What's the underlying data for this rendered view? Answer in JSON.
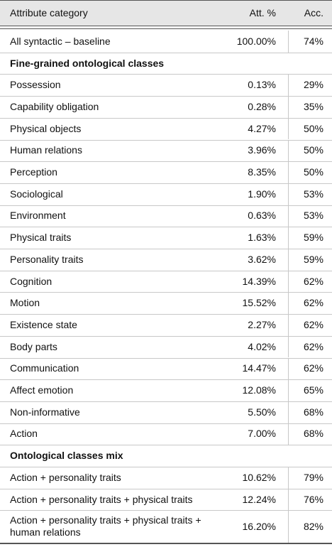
{
  "table": {
    "header": [
      "Attribute category",
      "Att. %",
      "Acc."
    ],
    "baseline": [
      "All syntactic – baseline",
      "100.00%",
      "74%"
    ],
    "sections": [
      {
        "title": "Fine-grained ontological classes",
        "rows": [
          [
            "Possession",
            "0.13%",
            "29%"
          ],
          [
            "Capability obligation",
            "0.28%",
            "35%"
          ],
          [
            "Physical objects",
            "4.27%",
            "50%"
          ],
          [
            "Human relations",
            "3.96%",
            "50%"
          ],
          [
            "Perception",
            "8.35%",
            "50%"
          ],
          [
            "Sociological",
            "1.90%",
            "53%"
          ],
          [
            "Environment",
            "0.63%",
            "53%"
          ],
          [
            "Physical traits",
            "1.63%",
            "59%"
          ],
          [
            "Personality traits",
            "3.62%",
            "59%"
          ],
          [
            "Cognition",
            "14.39%",
            "62%"
          ],
          [
            "Motion",
            "15.52%",
            "62%"
          ],
          [
            "Existence state",
            "2.27%",
            "62%"
          ],
          [
            "Body parts",
            "4.02%",
            "62%"
          ],
          [
            "Communication",
            "14.47%",
            "62%"
          ],
          [
            "Affect emotion",
            "12.08%",
            "65%"
          ],
          [
            "Non-informative",
            "5.50%",
            "68%"
          ],
          [
            "Action",
            "7.00%",
            "68%"
          ]
        ]
      },
      {
        "title": "Ontological classes mix",
        "rows": [
          [
            "Action + personality traits",
            "10.62%",
            "79%"
          ],
          [
            "Action + personality traits + physical traits",
            "12.24%",
            "76%"
          ],
          [
            "Action + personality traits + physical traits + human relations",
            "16.20%",
            "82%"
          ]
        ]
      }
    ]
  }
}
